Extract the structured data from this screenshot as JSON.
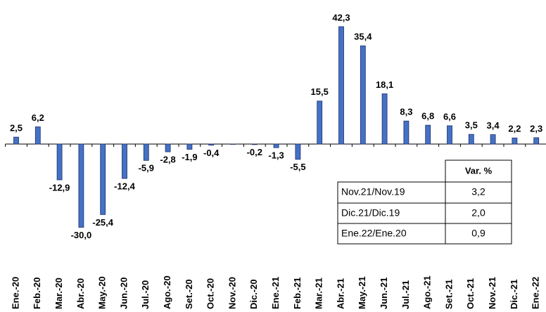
{
  "chart_data": {
    "type": "bar",
    "categories": [
      "Ene.-20",
      "Feb.-20",
      "Mar.-20",
      "Abr.-20",
      "May.-20",
      "Jun.-20",
      "Jul.-20",
      "Ago.-20",
      "Set.-20",
      "Oct.-20",
      "Nov.-20",
      "Dic.-20",
      "Ene.-21",
      "Feb.-21",
      "Mar.-21",
      "Abr.-21",
      "May.-21",
      "Jun.-21",
      "Jul.-21",
      "Ago.-21",
      "Set.-21",
      "Oct.-21",
      "Nov.-21",
      "Dic.-21",
      "Ene.-22"
    ],
    "values": [
      2.5,
      6.2,
      -12.9,
      -30.0,
      -25.4,
      -12.4,
      -5.9,
      -2.8,
      -1.9,
      -0.4,
      -0.1,
      -0.2,
      -1.3,
      -5.5,
      15.5,
      42.3,
      35.4,
      18.1,
      8.3,
      6.8,
      6.6,
      3.5,
      3.4,
      2.2,
      2.3
    ],
    "value_labels": [
      "2,5",
      "6,2",
      "-12,9",
      "-30,0",
      "-25,4",
      "-12,4",
      "-5,9",
      "-2,8",
      "-1,9",
      "-0,4",
      null,
      "-0,2",
      "-1,3",
      "-5,5",
      "15,5",
      "42,3",
      "35,4",
      "18,1",
      "8,3",
      "6,8",
      "6,6",
      "3,5",
      "3,4",
      "2,2",
      "2,3"
    ],
    "color": "#4472c4",
    "ylim": [
      -40,
      50
    ]
  },
  "table": {
    "header": "Var. %",
    "rows": [
      [
        "Nov.21/Nov.19",
        "3,2"
      ],
      [
        "Dic.21/Dic.19",
        "2,0"
      ],
      [
        "Ene.22/Ene.20",
        "0,9"
      ]
    ]
  }
}
